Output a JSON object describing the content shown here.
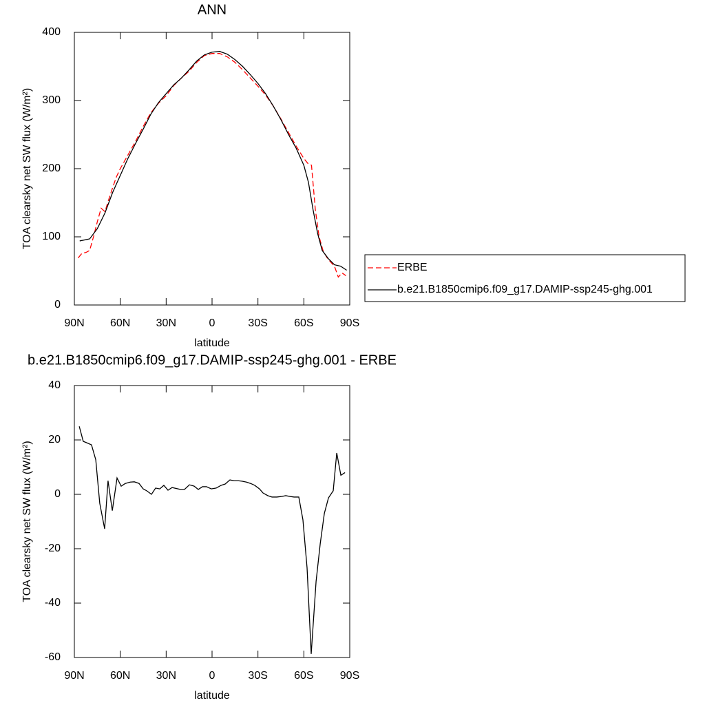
{
  "chart_data": [
    {
      "type": "line",
      "title": "ANN",
      "xlabel": "latitude",
      "ylabel": "TOA clearsky net SW flux (W/m²)",
      "xlim": [
        90,
        -90
      ],
      "xticks": [
        {
          "value": 90,
          "label": "90N"
        },
        {
          "value": 60,
          "label": "60N"
        },
        {
          "value": 30,
          "label": "30N"
        },
        0,
        {
          "value": -30,
          "label": "30S"
        },
        {
          "value": -60,
          "label": "60S"
        },
        {
          "value": -90,
          "label": "90S"
        }
      ],
      "ylim": [
        0,
        400
      ],
      "yticks": [
        0,
        100,
        200,
        300,
        400
      ],
      "legend_position": "right",
      "series": [
        {
          "name": "ERBE",
          "color": "#ff0000",
          "dashed": true,
          "x": [
            87.5,
            85,
            82.5,
            80,
            77.5,
            75,
            72.5,
            70,
            67.5,
            65,
            62.5,
            60,
            55,
            50,
            45,
            40,
            35,
            30,
            25,
            20,
            15,
            10,
            5,
            0,
            -5,
            -10,
            -15,
            -20,
            -25,
            -30,
            -35,
            -40,
            -45,
            -50,
            -55,
            -60,
            -62.5,
            -65,
            -67.5,
            -70,
            -72.5,
            -75,
            -77.5,
            -80,
            -82.5,
            -85,
            -87.5
          ],
          "values": [
            69,
            76,
            77,
            80,
            100,
            122,
            142,
            137,
            155,
            172,
            188,
            200,
            220,
            240,
            262,
            282,
            296,
            307,
            322,
            333,
            343,
            356,
            366,
            369,
            369,
            364,
            356,
            345,
            333,
            321,
            308,
            292,
            273,
            253,
            233,
            215,
            208,
            205,
            140,
            100,
            80,
            70,
            63,
            57,
            41,
            47,
            43
          ]
        },
        {
          "name": "b.e21.B1850cmip6.f09_g17.DAMIP-ssp245-ghg.001",
          "color": "#000000",
          "dashed": false,
          "x": [
            86.5,
            80,
            75,
            70,
            65,
            60,
            55,
            50,
            45,
            40,
            35,
            30,
            25,
            20,
            15,
            10,
            5,
            0,
            -5,
            -10,
            -15,
            -20,
            -25,
            -30,
            -35,
            -40,
            -45,
            -50,
            -55,
            -60,
            -63,
            -66,
            -69,
            -72,
            -76,
            -80,
            -84,
            -88
          ],
          "values": [
            94,
            97,
            112,
            135,
            165,
            190,
            215,
            237,
            258,
            280,
            297,
            310,
            323,
            333,
            345,
            358,
            367,
            371,
            372,
            368,
            360,
            350,
            338,
            325,
            310,
            292,
            272,
            250,
            230,
            205,
            180,
            140,
            105,
            80,
            68,
            59,
            57,
            51
          ]
        }
      ]
    },
    {
      "type": "line",
      "title": "b.e21.B1850cmip6.f09_g17.DAMIP-ssp245-ghg.001 - ERBE",
      "xlabel": "latitude",
      "ylabel": "TOA clearsky net SW flux (W/m²)",
      "xlim": [
        90,
        -90
      ],
      "xticks": [
        {
          "value": 90,
          "label": "90N"
        },
        {
          "value": 60,
          "label": "60N"
        },
        {
          "value": 30,
          "label": "30N"
        },
        0,
        {
          "value": -30,
          "label": "30S"
        },
        {
          "value": -60,
          "label": "60S"
        },
        {
          "value": -90,
          "label": "90S"
        }
      ],
      "ylim": [
        -60,
        40
      ],
      "yticks": [
        -60,
        -40,
        -20,
        0,
        20,
        40
      ],
      "series": [
        {
          "color": "#000000",
          "dashed": false,
          "x": [
            86.8,
            84.2,
            78.8,
            76,
            73.4,
            70.2,
            68,
            65.2,
            62.1,
            59.4,
            56.7,
            53.5,
            50.8,
            47.7,
            45,
            42.7,
            39.6,
            36.9,
            34.2,
            31.5,
            28.8,
            26.1,
            20.7,
            18,
            14.8,
            11.7,
            9,
            6.3,
            3.6,
            0.5,
            -2.7,
            -5.9,
            -8.6,
            -11.7,
            -14.4,
            -17.1,
            -19.8,
            -22.5,
            -25.2,
            -27.9,
            -31,
            -33.3,
            -36.5,
            -39.2,
            -42.3,
            -45.5,
            -48.2,
            -50.9,
            -53.6,
            -56.7,
            -59.4,
            -62.1,
            -64.8,
            -68,
            -70.7,
            -73.4,
            -76.1,
            -79.2,
            -81.5,
            -84.2,
            -86.9
          ],
          "values": [
            25,
            19.5,
            18.2,
            12.7,
            -3.3,
            -12.7,
            5,
            -6,
            6,
            3,
            4,
            4.5,
            4.6,
            4,
            2,
            1.3,
            0,
            2.3,
            2,
            3.3,
            1.5,
            2.5,
            1.8,
            1.8,
            3.5,
            3,
            1.8,
            2.8,
            2.8,
            2,
            2.3,
            3.3,
            3.8,
            5.3,
            5,
            5,
            4.8,
            4.5,
            4,
            3.3,
            2,
            0.5,
            -0.5,
            -1,
            -1,
            -0.8,
            -0.5,
            -0.8,
            -1,
            -1,
            -9.4,
            -27,
            -58.7,
            -32,
            -18.2,
            -7,
            -1.3,
            1.3,
            15.2,
            7,
            8
          ]
        }
      ]
    }
  ]
}
